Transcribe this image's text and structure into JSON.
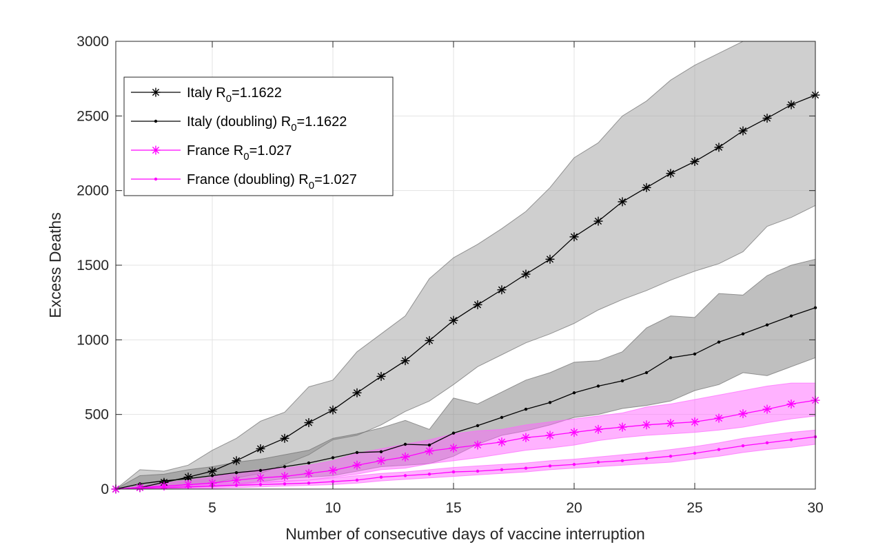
{
  "chart_data": {
    "type": "line",
    "xlabel": "Number of consecutive days of vaccine interruption",
    "ylabel": "Excess Deaths",
    "xlim": [
      1,
      30
    ],
    "ylim": [
      0,
      3000
    ],
    "xticks": [
      5,
      10,
      15,
      20,
      25,
      30
    ],
    "yticks": [
      0,
      500,
      1000,
      1500,
      2000,
      2500,
      3000
    ],
    "grid": true,
    "legend_position": "top-left",
    "x": [
      1,
      2,
      3,
      4,
      5,
      6,
      7,
      8,
      9,
      10,
      11,
      12,
      13,
      14,
      15,
      16,
      17,
      18,
      19,
      20,
      21,
      22,
      23,
      24,
      25,
      26,
      27,
      28,
      29,
      30
    ],
    "series": [
      {
        "name": "Italy R_0=1.1622",
        "label_main": "Italy R",
        "label_sub": "0",
        "label_tail": "=1.1622",
        "color": "#000000",
        "marker": "asterisk",
        "values": [
          0,
          10,
          45,
          80,
          120,
          190,
          270,
          340,
          445,
          530,
          645,
          755,
          860,
          995,
          1130,
          1235,
          1335,
          1440,
          1540,
          1690,
          1795,
          1925,
          2020,
          2115,
          2195,
          2290,
          2400,
          2485,
          2575,
          2640
        ],
        "band_lower": [
          0,
          0,
          10,
          25,
          40,
          75,
          105,
          165,
          230,
          330,
          360,
          430,
          520,
          590,
          700,
          820,
          900,
          980,
          1040,
          1110,
          1200,
          1270,
          1330,
          1400,
          1460,
          1510,
          1590,
          1760,
          1820,
          1900
        ],
        "band_upper": [
          0,
          130,
          120,
          160,
          260,
          340,
          455,
          515,
          685,
          730,
          920,
          1040,
          1160,
          1410,
          1550,
          1640,
          1745,
          1860,
          2020,
          2220,
          2320,
          2500,
          2600,
          2740,
          2840,
          2920,
          3000,
          3060,
          3100,
          3120
        ],
        "band_color": "#a0a0a0"
      },
      {
        "name": "Italy (doubling) R_0=1.1622",
        "label_main": "Italy (doubling) R",
        "label_sub": "0",
        "label_tail": "=1.1622",
        "color": "#000000",
        "marker": "dot",
        "values": [
          0,
          35,
          55,
          70,
          90,
          110,
          125,
          150,
          175,
          210,
          245,
          250,
          300,
          295,
          375,
          425,
          480,
          535,
          580,
          645,
          690,
          725,
          780,
          880,
          905,
          985,
          1040,
          1100,
          1160,
          1215
        ],
        "band_lower": [
          0,
          0,
          0,
          10,
          20,
          30,
          50,
          70,
          80,
          90,
          120,
          150,
          160,
          170,
          220,
          300,
          360,
          390,
          430,
          480,
          500,
          540,
          560,
          590,
          660,
          700,
          780,
          760,
          820,
          880
        ],
        "band_upper": [
          0,
          90,
          100,
          130,
          150,
          180,
          200,
          230,
          260,
          340,
          370,
          410,
          460,
          400,
          610,
          570,
          650,
          730,
          780,
          850,
          860,
          920,
          1080,
          1160,
          1150,
          1310,
          1300,
          1430,
          1500,
          1540
        ],
        "band_color": "#7f7f7f"
      },
      {
        "name": "France R_0=1.027",
        "label_main": "France R",
        "label_sub": "0",
        "label_tail": "=1.027",
        "color": "#ff00ff",
        "marker": "asterisk",
        "values": [
          0,
          10,
          20,
          30,
          40,
          60,
          75,
          85,
          105,
          125,
          160,
          190,
          215,
          255,
          275,
          295,
          315,
          345,
          360,
          380,
          400,
          415,
          430,
          440,
          450,
          475,
          505,
          535,
          570,
          595
        ],
        "band_lower": [
          0,
          0,
          5,
          10,
          15,
          25,
          40,
          50,
          60,
          80,
          100,
          130,
          140,
          170,
          190,
          210,
          235,
          260,
          275,
          295,
          325,
          345,
          360,
          370,
          380,
          395,
          415,
          445,
          470,
          490
        ],
        "band_upper": [
          0,
          20,
          40,
          60,
          80,
          110,
          130,
          140,
          160,
          190,
          240,
          270,
          300,
          330,
          370,
          390,
          400,
          430,
          450,
          470,
          490,
          510,
          550,
          570,
          600,
          630,
          660,
          690,
          710,
          710
        ],
        "band_color": "#ff66ff"
      },
      {
        "name": "France (doubling) R_0=1.027",
        "label_main": "France (doubling) R",
        "label_sub": "0",
        "label_tail": "=1.027",
        "color": "#ff00ff",
        "marker": "dot",
        "values": [
          0,
          5,
          10,
          15,
          20,
          25,
          30,
          35,
          40,
          50,
          60,
          80,
          90,
          100,
          115,
          120,
          130,
          140,
          155,
          165,
          180,
          190,
          205,
          220,
          240,
          265,
          290,
          310,
          330,
          350
        ],
        "band_lower": [
          0,
          0,
          0,
          5,
          5,
          10,
          15,
          20,
          25,
          30,
          40,
          55,
          65,
          75,
          85,
          95,
          105,
          115,
          130,
          140,
          150,
          160,
          170,
          180,
          200,
          220,
          245,
          265,
          280,
          300
        ],
        "band_upper": [
          0,
          10,
          20,
          25,
          35,
          40,
          50,
          55,
          60,
          75,
          90,
          105,
          115,
          130,
          145,
          155,
          165,
          175,
          190,
          200,
          215,
          230,
          245,
          265,
          285,
          310,
          340,
          360,
          380,
          395
        ],
        "band_color": "#ff66ff"
      }
    ]
  }
}
